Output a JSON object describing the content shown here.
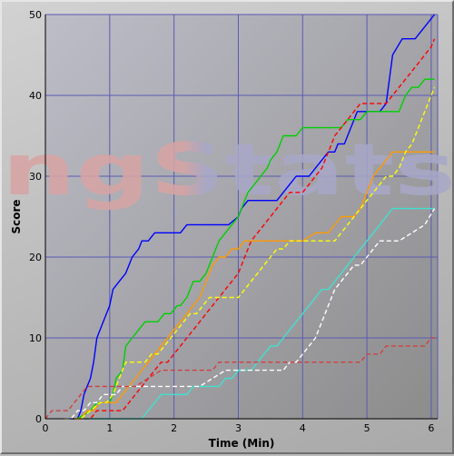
{
  "chart_data": {
    "type": "line",
    "title": "",
    "xlabel": "Time (Min)",
    "ylabel": "Score",
    "xlim": [
      0,
      6.1
    ],
    "ylim": [
      0,
      50
    ],
    "xticks": [
      0,
      1,
      2,
      3,
      4,
      5,
      6
    ],
    "yticks": [
      0,
      10,
      20,
      30,
      40,
      50
    ],
    "grid": true,
    "watermark": {
      "text": "ngStats",
      "left_color": "#d8a4a4",
      "right_color": "#a8a8c8"
    },
    "colors": {
      "plot_bg_top": "#bdbdc8",
      "plot_bg_bottom": "#8c8c8c",
      "grid": "#5a5ab4"
    },
    "series": [
      {
        "color": "#0000ff",
        "dash": "solid",
        "x": [
          0.4,
          0.5,
          0.55,
          0.6,
          0.65,
          0.7,
          0.75,
          0.8,
          0.9,
          1.0,
          1.05,
          1.15,
          1.25,
          1.35,
          1.45,
          1.5,
          1.6,
          1.7,
          1.8,
          1.85,
          1.9,
          2.0,
          2.1,
          2.2,
          2.3,
          2.45,
          2.6,
          2.75,
          2.85,
          3.0,
          3.05,
          3.15,
          3.2,
          3.4,
          3.6,
          3.7,
          3.8,
          3.9,
          4.05,
          4.1,
          4.2,
          4.3,
          4.4,
          4.5,
          4.55,
          4.65,
          4.75,
          4.85,
          4.95,
          5.0,
          5.1,
          5.2,
          5.3,
          5.4,
          5.55,
          5.65,
          5.75,
          5.85,
          5.95,
          6.05
        ],
        "y": [
          0,
          0,
          1,
          3,
          4,
          5,
          7,
          10,
          12,
          14,
          16,
          17,
          18,
          20,
          21,
          22,
          22,
          23,
          23,
          23,
          23,
          23,
          23,
          24,
          24,
          24,
          24,
          24,
          24,
          25,
          26,
          27,
          27,
          27,
          27,
          28,
          29,
          30,
          30,
          30,
          31,
          32,
          33,
          33,
          34,
          34,
          36,
          38,
          38,
          38,
          38,
          38,
          39,
          45,
          47,
          47,
          47,
          48,
          49,
          50
        ]
      },
      {
        "color": "#00d000",
        "dash": "solid",
        "x": [
          0.5,
          0.7,
          0.8,
          0.9,
          1.0,
          1.05,
          1.1,
          1.2,
          1.25,
          1.35,
          1.45,
          1.55,
          1.65,
          1.75,
          1.85,
          1.95,
          2.05,
          2.1,
          2.2,
          2.3,
          2.4,
          2.5,
          2.6,
          2.7,
          2.8,
          2.9,
          3.0,
          3.1,
          3.15,
          3.25,
          3.35,
          3.45,
          3.5,
          3.6,
          3.7,
          3.75,
          3.85,
          3.9,
          4.0,
          4.1,
          4.2,
          4.3,
          4.4,
          4.5,
          4.6,
          4.7,
          4.8,
          4.9,
          5.0,
          5.1,
          5.2,
          5.3,
          5.4,
          5.5,
          5.6,
          5.7,
          5.8,
          5.9,
          6.05
        ],
        "y": [
          0,
          1,
          2,
          2,
          2,
          3,
          5,
          6,
          9,
          10,
          11,
          12,
          12,
          12,
          13,
          13,
          14,
          14,
          15,
          17,
          17,
          18,
          20,
          22,
          23,
          24,
          25,
          27,
          28,
          29,
          30,
          31,
          32,
          33,
          35,
          35,
          35,
          35,
          36,
          36,
          36,
          36,
          36,
          36,
          36,
          37,
          37,
          37,
          38,
          38,
          38,
          38,
          38,
          38,
          40,
          41,
          41,
          42,
          42
        ]
      },
      {
        "color": "#ff0000",
        "dash": "dashed",
        "x": [
          0.6,
          0.7,
          0.8,
          0.9,
          1.0,
          1.1,
          1.2,
          1.3,
          1.4,
          1.5,
          1.6,
          1.7,
          1.8,
          1.9,
          2.0,
          2.1,
          2.2,
          2.3,
          2.4,
          2.5,
          2.6,
          2.7,
          2.8,
          2.9,
          3.0,
          3.1,
          3.2,
          3.3,
          3.4,
          3.5,
          3.6,
          3.7,
          3.8,
          3.9,
          4.0,
          4.1,
          4.2,
          4.3,
          4.4,
          4.5,
          4.6,
          4.7,
          4.8,
          4.9,
          5.0,
          5.1,
          5.2,
          5.3,
          5.4,
          5.5,
          5.6,
          5.7,
          5.8,
          5.9,
          6.0,
          6.05
        ],
        "y": [
          0,
          0,
          1,
          1,
          1,
          1,
          1,
          2,
          3,
          4,
          5,
          6,
          7,
          7,
          8,
          9,
          10,
          11,
          12,
          13,
          14,
          15,
          16,
          17,
          18,
          20,
          22,
          23,
          24,
          25,
          26,
          27,
          28,
          28,
          28,
          29,
          30,
          31,
          33,
          35,
          36,
          37,
          38,
          39,
          39,
          39,
          39,
          39,
          40,
          41,
          42,
          43,
          44,
          45,
          46,
          47
        ]
      },
      {
        "color": "#ff9900",
        "dash": "solid",
        "x": [
          0.45,
          0.55,
          0.65,
          0.75,
          0.85,
          1.0,
          1.1,
          1.2,
          1.3,
          1.4,
          1.5,
          1.6,
          1.7,
          1.8,
          1.9,
          2.0,
          2.1,
          2.2,
          2.3,
          2.4,
          2.5,
          2.6,
          2.7,
          2.8,
          2.9,
          3.0,
          3.1,
          3.2,
          3.4,
          3.6,
          3.8,
          4.0,
          4.2,
          4.4,
          4.6,
          4.8,
          4.9,
          5.0,
          5.1,
          5.2,
          5.3,
          5.4,
          5.5,
          5.6,
          5.8,
          6.05
        ],
        "y": [
          0,
          0,
          1,
          1,
          2,
          2,
          2,
          3,
          4,
          5,
          6,
          7,
          8,
          9,
          10,
          11,
          12,
          13,
          14,
          15,
          17,
          19,
          20,
          20,
          21,
          21,
          22,
          22,
          22,
          22,
          22,
          22,
          23,
          23,
          25,
          25,
          26,
          28,
          30,
          31,
          32,
          33,
          33,
          33,
          33,
          33
        ]
      },
      {
        "color": "#ffff00",
        "dash": "dashed",
        "x": [
          0.45,
          0.55,
          0.7,
          0.85,
          0.95,
          1.05,
          1.15,
          1.25,
          1.35,
          1.45,
          1.55,
          1.65,
          1.75,
          1.85,
          1.95,
          2.05,
          2.15,
          2.25,
          2.35,
          2.45,
          2.55,
          2.65,
          2.75,
          2.85,
          3.0,
          3.1,
          3.2,
          3.3,
          3.4,
          3.5,
          3.6,
          3.7,
          3.8,
          3.9,
          4.0,
          4.1,
          4.2,
          4.3,
          4.4,
          4.5,
          4.6,
          4.7,
          4.8,
          4.9,
          5.0,
          5.1,
          5.2,
          5.3,
          5.4,
          5.5,
          5.6,
          5.7,
          5.8,
          5.9,
          6.0,
          6.05
        ],
        "y": [
          0,
          0,
          1,
          2,
          2,
          3,
          5,
          7,
          7,
          7,
          7,
          8,
          8,
          9,
          10,
          11,
          12,
          13,
          13,
          14,
          15,
          15,
          15,
          15,
          15,
          16,
          17,
          18,
          19,
          20,
          21,
          21,
          22,
          22,
          22,
          22,
          22,
          22,
          22,
          22,
          23,
          24,
          25,
          26,
          27,
          28,
          29,
          30,
          30,
          31,
          33,
          34,
          36,
          38,
          40,
          41
        ]
      },
      {
        "color": "#40e0d0",
        "dash": "solid",
        "x": [
          0.6,
          0.8,
          1.0,
          1.2,
          1.4,
          1.5,
          1.6,
          1.7,
          1.8,
          2.0,
          2.1,
          2.2,
          2.3,
          2.4,
          2.5,
          2.6,
          2.7,
          2.8,
          2.9,
          3.0,
          3.1,
          3.2,
          3.3,
          3.4,
          3.5,
          3.6,
          3.7,
          3.8,
          3.9,
          4.0,
          4.1,
          4.2,
          4.3,
          4.4,
          4.5,
          4.6,
          4.7,
          4.8,
          4.9,
          5.0,
          5.1,
          5.2,
          5.3,
          5.4,
          5.6,
          5.8,
          6.05
        ],
        "y": [
          0,
          0,
          0,
          0,
          0,
          0,
          1,
          2,
          3,
          3,
          3,
          3,
          4,
          4,
          4,
          4,
          4,
          5,
          5,
          6,
          6,
          6,
          7,
          8,
          9,
          9,
          10,
          11,
          12,
          13,
          14,
          15,
          16,
          16,
          17,
          18,
          19,
          20,
          21,
          22,
          23,
          24,
          25,
          26,
          26,
          26,
          26
        ]
      },
      {
        "color": "#ffffff",
        "dash": "dashed",
        "x": [
          0.3,
          0.4,
          0.5,
          0.6,
          0.7,
          0.8,
          0.9,
          1.0,
          1.1,
          1.2,
          1.4,
          1.6,
          1.8,
          2.0,
          2.2,
          2.4,
          2.6,
          2.8,
          3.0,
          3.2,
          3.4,
          3.6,
          3.7,
          3.8,
          3.9,
          4.0,
          4.1,
          4.2,
          4.3,
          4.4,
          4.5,
          4.6,
          4.7,
          4.8,
          4.9,
          5.0,
          5.1,
          5.2,
          5.3,
          5.5,
          5.7,
          5.9,
          6.05
        ],
        "y": [
          0,
          0,
          1,
          1,
          2,
          2,
          3,
          3,
          3,
          4,
          4,
          4,
          4,
          4,
          4,
          4,
          5,
          6,
          6,
          6,
          6,
          6,
          6,
          7,
          7,
          8,
          9,
          10,
          12,
          14,
          16,
          17,
          18,
          19,
          19,
          20,
          21,
          22,
          22,
          22,
          23,
          24,
          26
        ]
      },
      {
        "color": "#d04040",
        "dash": "dashed",
        "x": [
          0.0,
          0.1,
          0.15,
          0.25,
          0.35,
          0.45,
          0.55,
          0.65,
          0.75,
          0.85,
          1.0,
          1.2,
          1.4,
          1.6,
          1.8,
          2.0,
          2.2,
          2.4,
          2.6,
          2.7,
          2.8,
          3.0,
          3.2,
          3.4,
          3.6,
          3.8,
          4.0,
          4.2,
          4.4,
          4.6,
          4.8,
          4.9,
          5.0,
          5.1,
          5.2,
          5.3,
          5.4,
          5.5,
          5.6,
          5.8,
          5.9,
          6.0,
          6.05
        ],
        "y": [
          0,
          1,
          1,
          1,
          1,
          2,
          3,
          4,
          4,
          4,
          4,
          4,
          4,
          5,
          6,
          6,
          6,
          6,
          6,
          7,
          7,
          7,
          7,
          7,
          7,
          7,
          7,
          7,
          7,
          7,
          7,
          7,
          8,
          8,
          8,
          9,
          9,
          9,
          9,
          9,
          9,
          10,
          10
        ]
      }
    ]
  }
}
